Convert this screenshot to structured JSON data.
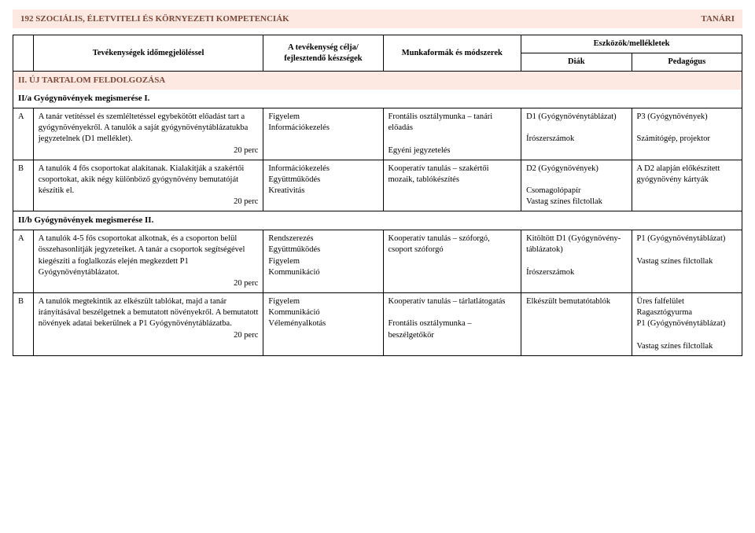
{
  "header": {
    "left": "192  SZOCIÁLIS, ÉLETVITELI ÉS KÖRNYEZETI KOMPETENCIÁK",
    "right": "TANÁRI"
  },
  "columns": {
    "activity": "Tevékenységek időmegjelöléssel",
    "goal": "A tevékenység célja/ fejlesztendő készségek",
    "method": "Munkaformák és módszerek",
    "tools_header": "Eszközök/mellékletek",
    "diak": "Diák",
    "ped": "Pedagógus"
  },
  "sectionII": {
    "title": "II. ÚJ TARTALOM FELDOLGOZÁSA",
    "IIa": "II/a Gyógynövények megismerése I.",
    "rowA": {
      "label": "A",
      "activity": "A tanár vetítéssel és szemléltetéssel egybekötött előadást tart a gyógynövényekről. A tanulók a saját gyógynövénytáblázatukba jegyzetelnek (D1 melléklet).",
      "time": "20 perc",
      "goal": "Figyelem\nInformációkezelés",
      "method": "Frontális osztálymunka – tanári előadás\n\nEgyéni jegyzetelés",
      "diak": "D1 (Gyógy­növénytáblázat)\n\nÍrószerszámok",
      "ped": "P3 (Gyógy­növények)\n\nSzámítógép, projektor"
    },
    "rowB": {
      "label": "B",
      "activity": "A tanulók 4 fős csoportokat alakítanak. Kialakítják a szakértői csoportokat, akik négy különböző gyógynövény bemutatóját készítik el.",
      "time": "20 perc",
      "goal": "Információkezelés\nEgyüttműködés\nKreativitás",
      "method": "Kooperatív tanulás – szakértői mozaik, tablókészítés",
      "diak": "D2 (Gyógy­növények)\n\nCsomagolópapír\nVastag színes filctollak",
      "ped": "A D2 alapján előkészített gyógynövény kártyák"
    },
    "IIb": "II/b Gyógynövények megismerése II.",
    "rowA2": {
      "label": "A",
      "activity": "A tanulók 4-5 fős csoportokat alkotnak, és a csoporton belül összehasonlítják jegyzeteiket. A tanár a csoportok segítségével kiegészíti a foglalkozás elején megkezdett P1 Gyógynövénytáblázatot.",
      "time": "20 perc",
      "goal": "Rendszerezés\nEgyüttműködés\nFigyelem\nKommunikáció",
      "method": "Kooperatív tanulás – szóforgó, csoport szóforgó",
      "diak": "Kitöltött D1 (Gyógynövény­táblázatok)\n\nÍrószerszámok",
      "ped": "P1 (Gyógy­növénytáblázat)\n\nVastag színes filctollak"
    },
    "rowB2": {
      "label": "B",
      "activity": "A tanulók megtekintik az elkészült tablókat, majd a tanár irányításával beszélgetnek a bemutatott növényekről. A bemutatott növények adatai bekerülnek a P1 Gyógynövénytáblázatba.",
      "time": "20 perc",
      "goal": "Figyelem\nKommunikáció\nVéleményalkotás",
      "method": "Kooperatív tanulás – tárlatlátogatás\n\nFrontális osztálymunka – beszélgetőkör",
      "diak": "Elkészült bemutatótablók",
      "ped": "Üres falfelület\nRagasztógyurma\nP1 (Gyógy­növénytáblázat)\n\nVastag színes filctollak"
    }
  }
}
